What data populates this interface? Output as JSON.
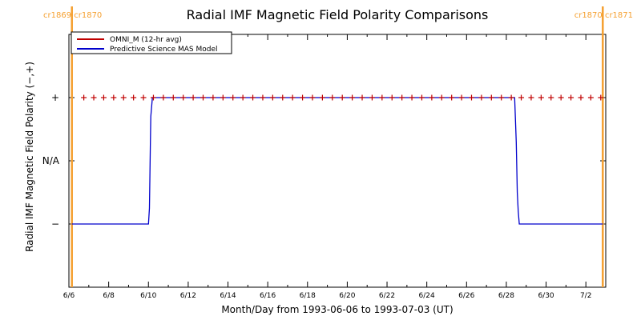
{
  "chart_data": {
    "type": "line",
    "title": "Radial IMF Magnetic Field Polarity Comparisons",
    "xlabel": "Month/Day from 1993-06-06 to 1993-07-03 (UT)",
    "ylabel": "Radial IMF Magnetic Field Polarity (−,+)",
    "x_unit": "days since 1993-06-06 00:00 UT",
    "xlim": [
      0,
      27
    ],
    "ylim": [
      -2,
      2
    ],
    "grid": false,
    "legend_position": "top-left",
    "x_ticks": [
      {
        "x": 0,
        "label": "6/6"
      },
      {
        "x": 2,
        "label": "6/8"
      },
      {
        "x": 4,
        "label": "6/10"
      },
      {
        "x": 6,
        "label": "6/12"
      },
      {
        "x": 8,
        "label": "6/14"
      },
      {
        "x": 10,
        "label": "6/16"
      },
      {
        "x": 12,
        "label": "6/18"
      },
      {
        "x": 14,
        "label": "6/20"
      },
      {
        "x": 16,
        "label": "6/22"
      },
      {
        "x": 18,
        "label": "6/24"
      },
      {
        "x": 20,
        "label": "6/26"
      },
      {
        "x": 22,
        "label": "6/28"
      },
      {
        "x": 24,
        "label": "6/30"
      },
      {
        "x": 26,
        "label": "7/2"
      }
    ],
    "y_ticks": [
      {
        "y": 1,
        "label": "+"
      },
      {
        "y": 0,
        "label": "N/A"
      },
      {
        "y": -1,
        "label": "−"
      }
    ],
    "series": [
      {
        "name": "OMNI_M (12-hr avg)",
        "color": "#c00000",
        "marker": "plus",
        "x": [
          0.75,
          1.25,
          1.75,
          2.25,
          2.75,
          3.25,
          3.75,
          4.25,
          4.75,
          5.25,
          5.75,
          6.25,
          6.75,
          7.25,
          7.75,
          8.25,
          8.75,
          9.25,
          9.75,
          10.25,
          10.75,
          11.25,
          11.75,
          12.25,
          12.75,
          13.25,
          13.75,
          14.25,
          14.75,
          15.25,
          15.75,
          16.25,
          16.75,
          17.25,
          17.75,
          18.25,
          18.75,
          19.25,
          19.75,
          20.25,
          20.75,
          21.25,
          21.75,
          22.25,
          22.75,
          23.25,
          23.75,
          24.25,
          24.75,
          25.25,
          25.75,
          26.25,
          26.75
        ],
        "y": [
          1,
          1,
          1,
          1,
          1,
          1,
          1,
          1,
          1,
          1,
          1,
          1,
          1,
          1,
          1,
          1,
          1,
          1,
          1,
          1,
          1,
          1,
          1,
          1,
          1,
          1,
          1,
          1,
          1,
          1,
          1,
          1,
          1,
          1,
          1,
          1,
          1,
          1,
          1,
          1,
          1,
          1,
          1,
          1,
          1,
          1,
          1,
          1,
          1,
          1,
          1,
          1,
          1
        ]
      },
      {
        "name": "Predictive Science MAS Model",
        "color": "#0000cc",
        "x": [
          0.15,
          4.0,
          4.05,
          4.1,
          4.12,
          4.2,
          22.42,
          22.5,
          22.55,
          22.6,
          22.65,
          26.85
        ],
        "y": [
          -1,
          -1,
          -0.75,
          0.3,
          0.7,
          1,
          1,
          0.3,
          -0.5,
          -0.8,
          -1,
          -1
        ]
      }
    ],
    "carrington_rotations": [
      {
        "x": 0.15,
        "label": "cr1869 cr1870"
      },
      {
        "x": 26.85,
        "label": "cr1870 cr1871"
      }
    ],
    "colors": {
      "rotation_line": "#f5a030",
      "axis": "#000000"
    }
  }
}
